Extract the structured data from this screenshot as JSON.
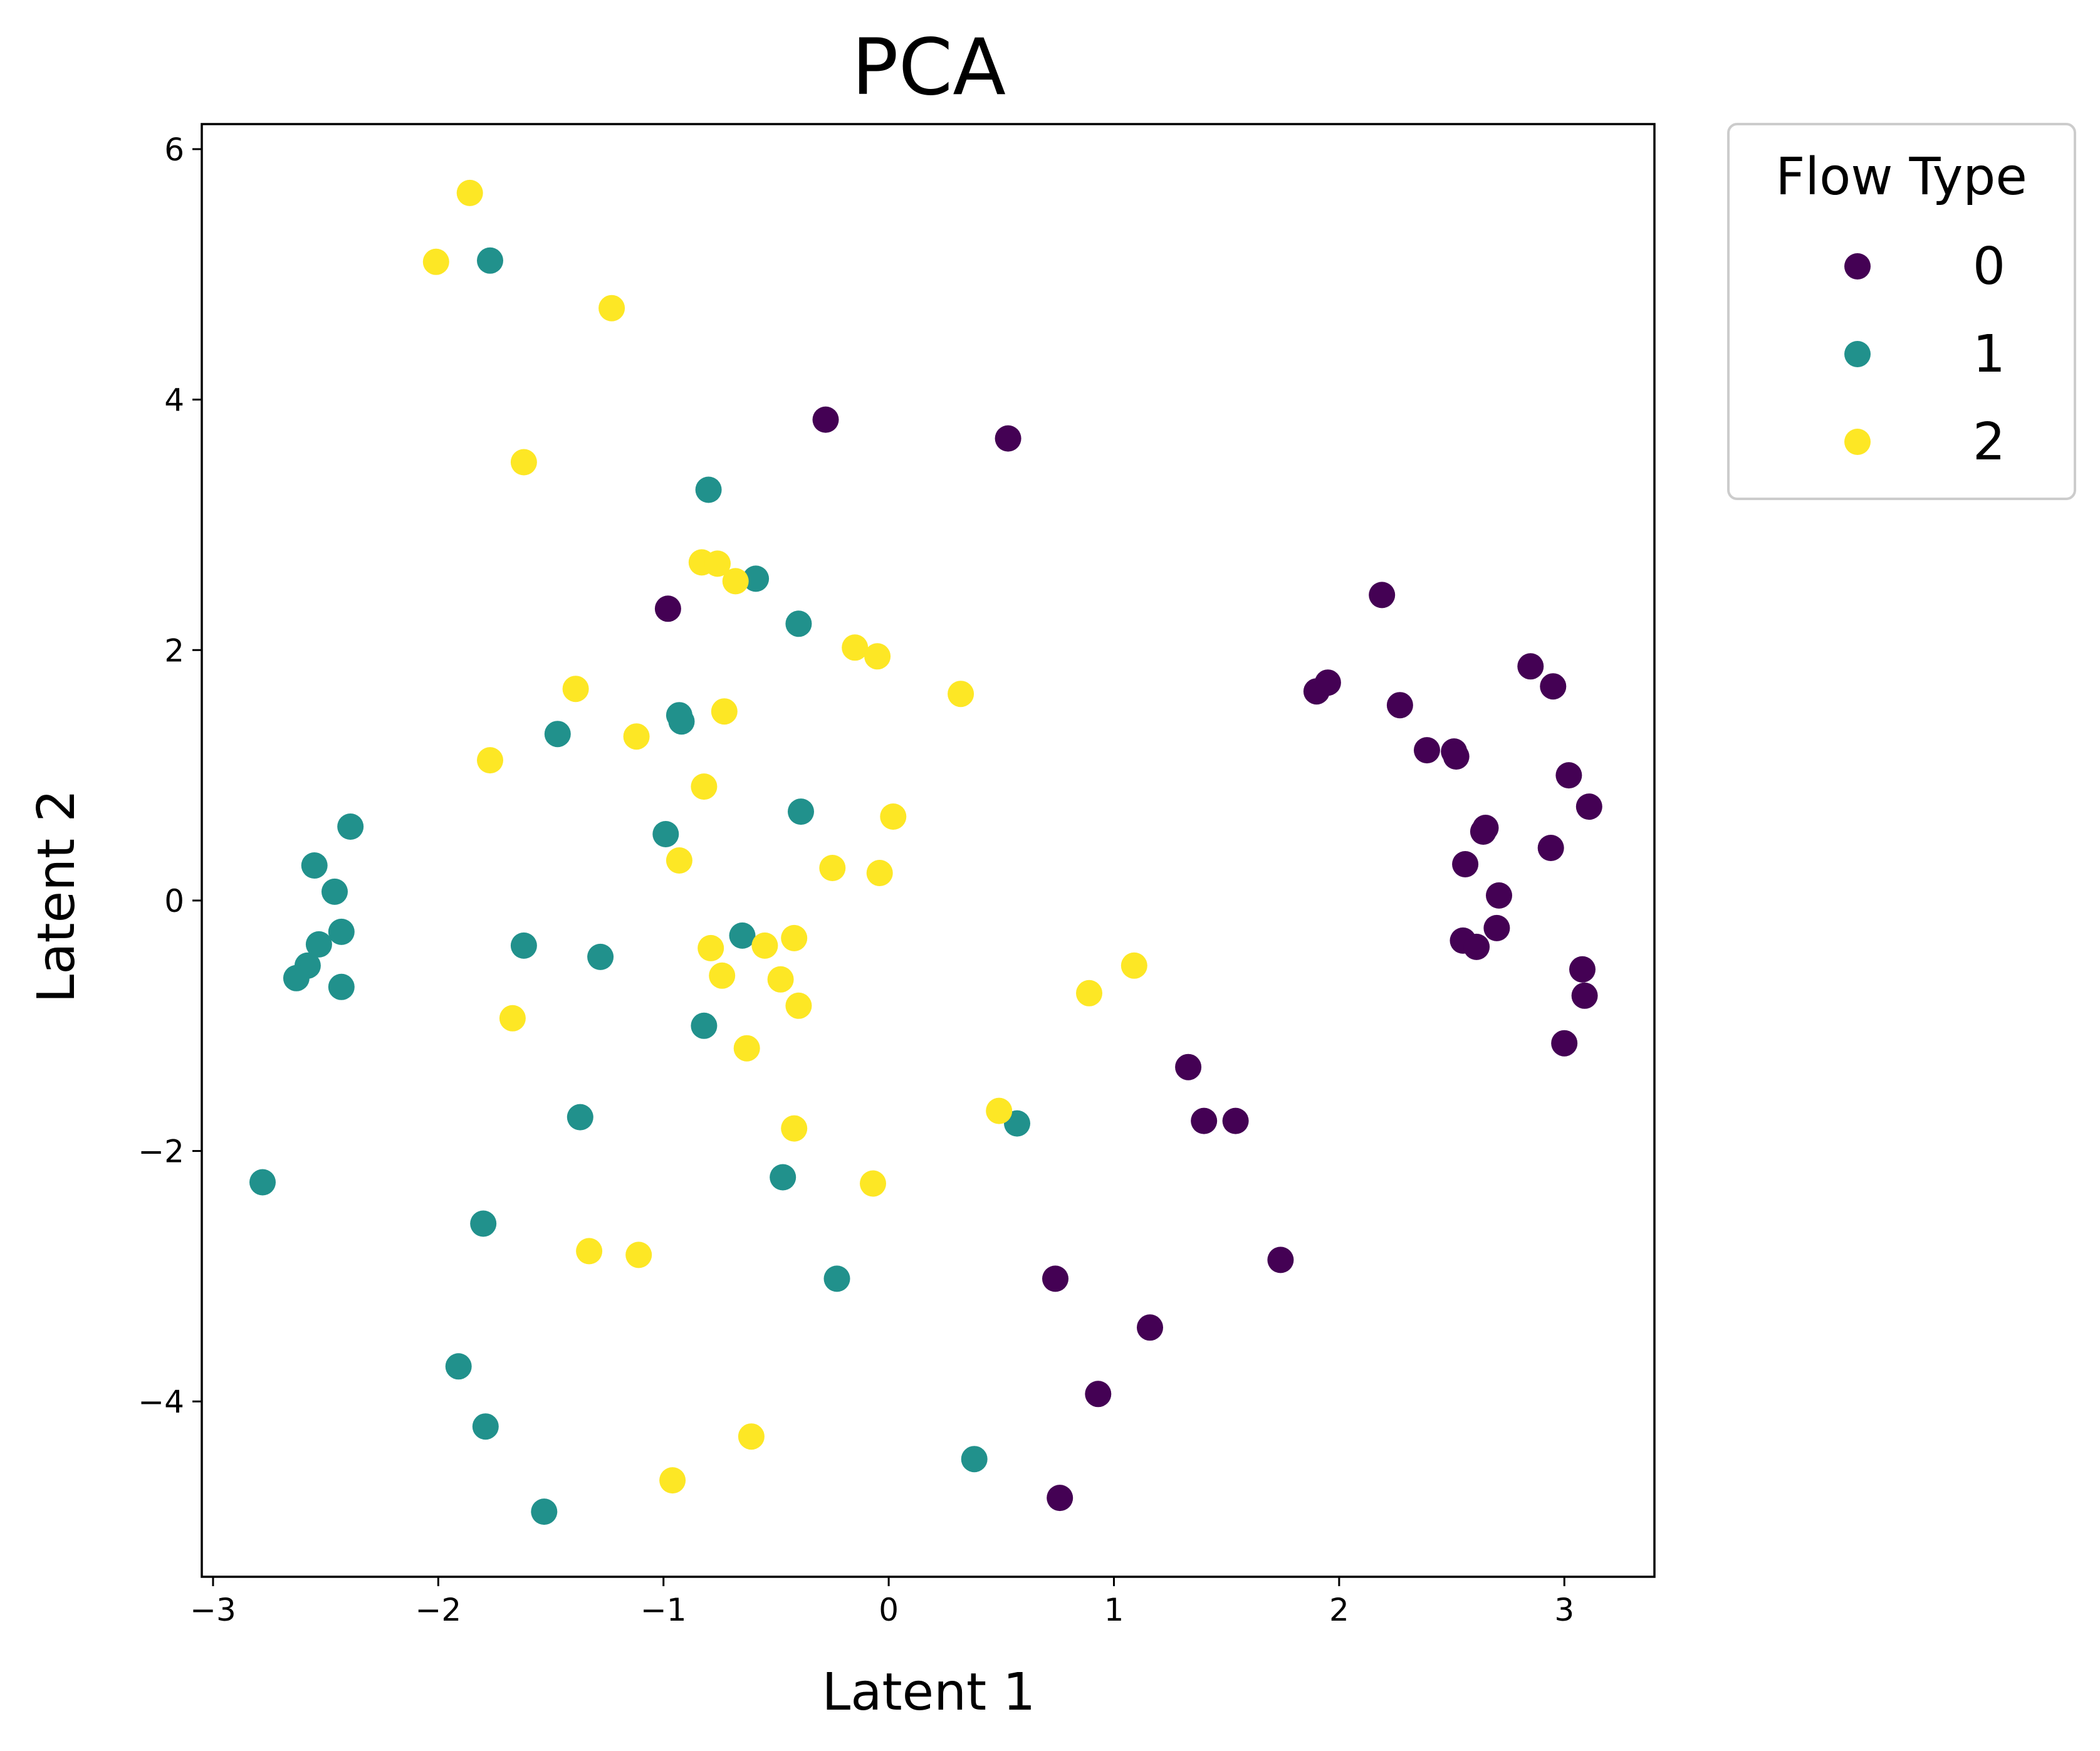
{
  "chart_data": {
    "type": "scatter",
    "title": "PCA",
    "xlabel": "Latent 1",
    "ylabel": "Latent 2",
    "xlim": [
      -3.05,
      3.4
    ],
    "ylim": [
      -5.4,
      6.2
    ],
    "grid": false,
    "legend": {
      "title": "Flow Type",
      "placement": "outside-top-right"
    },
    "x_ticks": [
      {
        "value": -3,
        "label": "−3"
      },
      {
        "value": -2,
        "label": "−2"
      },
      {
        "value": -1,
        "label": "−1"
      },
      {
        "value": 0,
        "label": "0"
      },
      {
        "value": 1,
        "label": "1"
      },
      {
        "value": 2,
        "label": "2"
      },
      {
        "value": 3,
        "label": "3"
      }
    ],
    "y_ticks": [
      {
        "value": 6,
        "label": "6"
      },
      {
        "value": 4,
        "label": "4"
      },
      {
        "value": 2,
        "label": "2"
      },
      {
        "value": 0,
        "label": "0"
      },
      {
        "value": -2,
        "label": "−2"
      },
      {
        "value": -4,
        "label": "−4"
      }
    ],
    "series": [
      {
        "name": "0",
        "color": "#440154",
        "points": [
          [
            -0.28,
            3.84
          ],
          [
            0.53,
            3.69
          ],
          [
            -0.98,
            2.33
          ],
          [
            2.19,
            2.44
          ],
          [
            1.9,
            1.67
          ],
          [
            1.95,
            1.74
          ],
          [
            2.27,
            1.56
          ],
          [
            2.39,
            1.2
          ],
          [
            2.51,
            1.19
          ],
          [
            2.52,
            1.15
          ],
          [
            2.85,
            1.87
          ],
          [
            2.95,
            1.71
          ],
          [
            3.02,
            1.0
          ],
          [
            3.11,
            0.75
          ],
          [
            2.64,
            0.55
          ],
          [
            2.65,
            0.58
          ],
          [
            2.94,
            0.42
          ],
          [
            2.56,
            0.29
          ],
          [
            2.71,
            0.04
          ],
          [
            2.7,
            -0.22
          ],
          [
            2.55,
            -0.32
          ],
          [
            2.61,
            -0.37
          ],
          [
            3.08,
            -0.55
          ],
          [
            3.09,
            -0.76
          ],
          [
            3.0,
            -1.14
          ],
          [
            1.33,
            -1.33
          ],
          [
            1.4,
            -1.76
          ],
          [
            1.54,
            -1.76
          ],
          [
            1.74,
            -2.87
          ],
          [
            0.74,
            -3.02
          ],
          [
            1.16,
            -3.41
          ],
          [
            0.93,
            -3.94
          ],
          [
            0.76,
            -4.77
          ]
        ]
      },
      {
        "name": "1",
        "color": "#21918c",
        "points": [
          [
            -1.77,
            5.11
          ],
          [
            -0.8,
            3.28
          ],
          [
            -0.59,
            2.57
          ],
          [
            -0.4,
            2.21
          ],
          [
            -0.93,
            1.48
          ],
          [
            -0.92,
            1.43
          ],
          [
            -1.47,
            1.33
          ],
          [
            -2.39,
            0.59
          ],
          [
            -2.55,
            0.28
          ],
          [
            -0.99,
            0.53
          ],
          [
            -0.39,
            0.71
          ],
          [
            -2.46,
            0.07
          ],
          [
            -2.43,
            -0.25
          ],
          [
            -2.53,
            -0.35
          ],
          [
            -2.58,
            -0.52
          ],
          [
            -2.63,
            -0.62
          ],
          [
            -2.43,
            -0.69
          ],
          [
            -1.62,
            -0.36
          ],
          [
            -1.28,
            -0.45
          ],
          [
            -0.65,
            -0.28
          ],
          [
            -0.82,
            -1.0
          ],
          [
            -1.37,
            -1.73
          ],
          [
            0.57,
            -1.78
          ],
          [
            -0.47,
            -2.21
          ],
          [
            -2.78,
            -2.25
          ],
          [
            -1.8,
            -2.58
          ],
          [
            -0.23,
            -3.02
          ],
          [
            -1.91,
            -3.72
          ],
          [
            -1.79,
            -4.2
          ],
          [
            0.38,
            -4.46
          ],
          [
            -1.53,
            -4.88
          ]
        ]
      },
      {
        "name": "2",
        "color": "#fde725",
        "points": [
          [
            -1.86,
            5.65
          ],
          [
            -2.01,
            5.1
          ],
          [
            -1.23,
            4.73
          ],
          [
            -1.62,
            3.5
          ],
          [
            -0.83,
            2.7
          ],
          [
            -0.76,
            2.69
          ],
          [
            -0.68,
            2.55
          ],
          [
            -0.15,
            2.02
          ],
          [
            -0.05,
            1.95
          ],
          [
            0.32,
            1.65
          ],
          [
            -1.39,
            1.69
          ],
          [
            -1.12,
            1.31
          ],
          [
            -0.73,
            1.51
          ],
          [
            -1.77,
            1.12
          ],
          [
            -0.82,
            0.91
          ],
          [
            0.02,
            0.67
          ],
          [
            -0.93,
            0.32
          ],
          [
            -0.25,
            0.26
          ],
          [
            -0.04,
            0.22
          ],
          [
            -0.42,
            -0.3
          ],
          [
            -0.55,
            -0.36
          ],
          [
            -0.79,
            -0.38
          ],
          [
            -0.74,
            -0.6
          ],
          [
            -0.48,
            -0.63
          ],
          [
            -0.4,
            -0.84
          ],
          [
            1.09,
            -0.52
          ],
          [
            0.89,
            -0.74
          ],
          [
            -1.67,
            -0.94
          ],
          [
            -0.63,
            -1.18
          ],
          [
            -0.42,
            -1.82
          ],
          [
            0.49,
            -1.68
          ],
          [
            -0.07,
            -2.26
          ],
          [
            -1.33,
            -2.8
          ],
          [
            -1.11,
            -2.83
          ],
          [
            -0.61,
            -4.28
          ],
          [
            -0.96,
            -4.63
          ]
        ]
      }
    ]
  }
}
